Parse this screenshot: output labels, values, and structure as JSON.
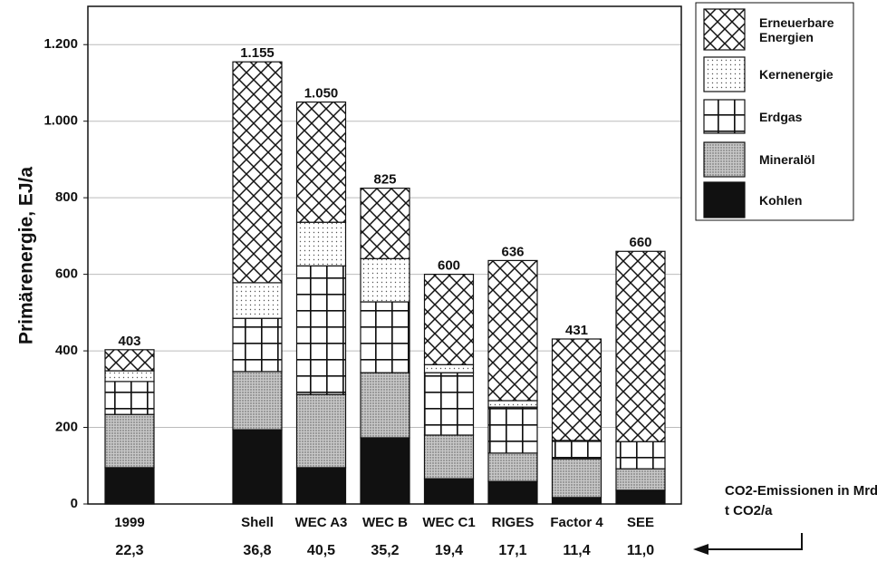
{
  "chart_data": {
    "type": "stacked-bar",
    "y_label": "Primärenergie, EJ/a",
    "categories": [
      "1999",
      null,
      "Shell",
      "WEC A3",
      "WEC B",
      "WEC C1",
      "RIGES",
      "Factor 4",
      "SEE"
    ],
    "series": [
      {
        "name": "Kohlen",
        "color": "#111111",
        "pattern": "solid",
        "values": [
          95,
          null,
          194,
          95,
          173,
          66,
          59,
          17,
          36
        ]
      },
      {
        "name": "Mineralöl",
        "color": "#111111",
        "pattern": "dense-dots",
        "values": [
          139,
          null,
          152,
          191,
          170,
          114,
          74,
          101,
          56
        ]
      },
      {
        "name": "Erdgas",
        "color": "#111111",
        "pattern": "grid",
        "values": [
          86,
          null,
          139,
          336,
          185,
          163,
          120,
          48,
          71
        ]
      },
      {
        "name": "Kernenergie",
        "color": "#111111",
        "pattern": "dots",
        "values": [
          28,
          null,
          93,
          114,
          113,
          21,
          17,
          0,
          0
        ]
      },
      {
        "name": "Erneuerbare Energien",
        "color": "#111111",
        "pattern": "crosshatch",
        "values": [
          55,
          null,
          577,
          314,
          184,
          236,
          366,
          265,
          497
        ]
      }
    ],
    "totals": {
      "values": [
        403,
        null,
        1155,
        1050,
        825,
        600,
        636,
        431,
        660
      ],
      "value_labels": [
        "403",
        null,
        "1.155",
        "1.050",
        "825",
        "600",
        "636",
        "431",
        "660"
      ]
    },
    "co2_emissions": {
      "label": "CO2-Emissionen in Mrd t CO2/a",
      "values": [
        22.3,
        null,
        36.8,
        40.5,
        35.2,
        19.4,
        17.1,
        11.4,
        11.0
      ],
      "value_labels": [
        "22,3",
        null,
        "36,8",
        "40,5",
        "35,2",
        "19,4",
        "17,1",
        "11,4",
        "11,0"
      ]
    },
    "ylim": [
      0,
      1300
    ],
    "yticks": [
      0,
      200,
      400,
      600,
      800,
      {
        "value": 1000,
        "label": "1.000"
      },
      {
        "value": 1200,
        "label": "1.200"
      }
    ],
    "grid": true,
    "legend": "top-right"
  }
}
